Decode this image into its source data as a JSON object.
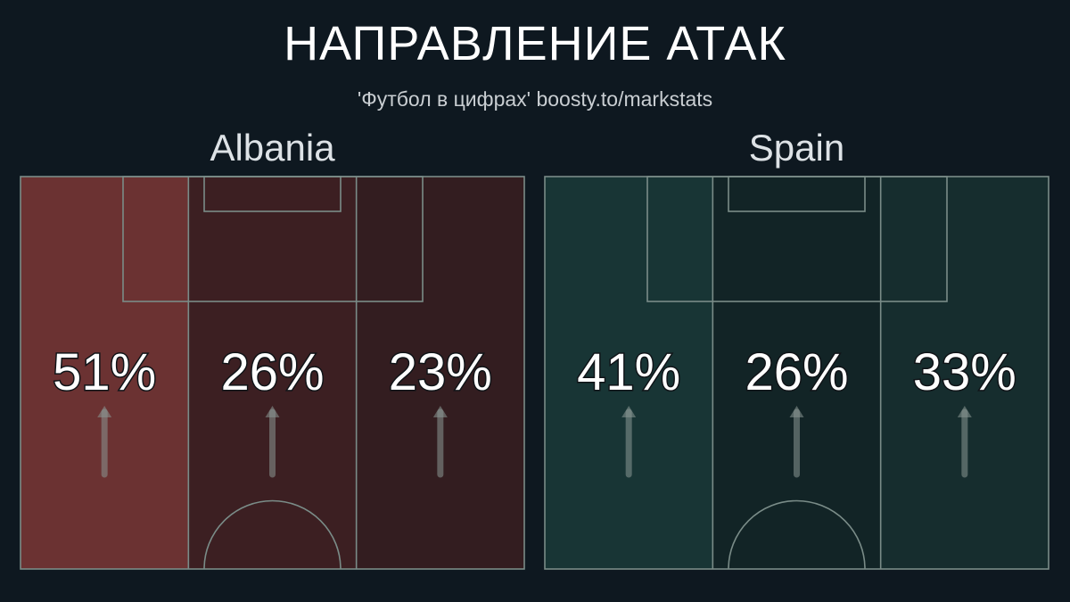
{
  "title": "НАПРАВЛЕНИЕ АТАК",
  "subtitle": "'Футбол в цифрах' boosty.to/markstats",
  "colors": {
    "background": "#0e1820",
    "lines": "#7a8c88"
  },
  "chart_data": [
    {
      "type": "table",
      "team": "Albania",
      "categories": [
        "left",
        "center",
        "right"
      ],
      "values": [
        51,
        26,
        23
      ],
      "unit": "%",
      "zone_colors": [
        "#6b3232",
        "#3c1f22",
        "#331d20"
      ],
      "labels": [
        "51%",
        "26%",
        "23%"
      ]
    },
    {
      "type": "table",
      "team": "Spain",
      "categories": [
        "left",
        "center",
        "right"
      ],
      "values": [
        41,
        26,
        33
      ],
      "unit": "%",
      "zone_colors": [
        "#183535",
        "#122426",
        "#162d2e"
      ],
      "labels": [
        "41%",
        "26%",
        "33%"
      ]
    }
  ]
}
